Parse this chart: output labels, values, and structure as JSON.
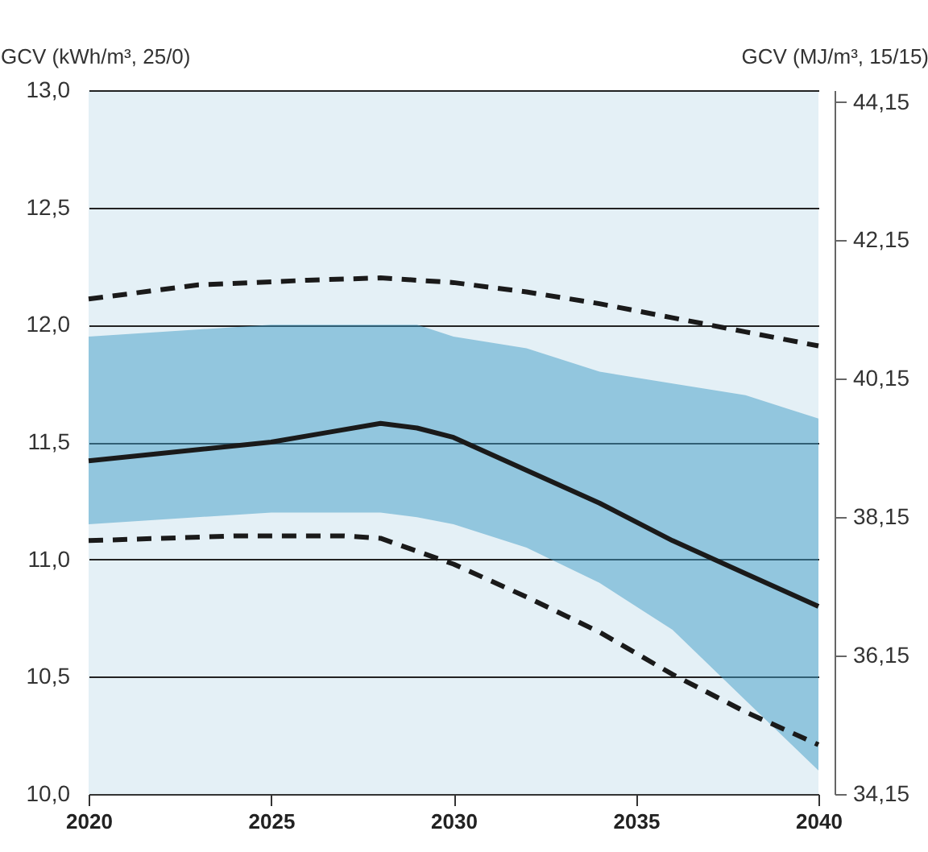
{
  "chart_data": {
    "type": "line",
    "ylabel": "GCV (kWh/m³, 25/0)",
    "y2label": "GCV (MJ/m³, 15/15)",
    "xlim": [
      2020,
      2040
    ],
    "xticks": [
      2020,
      2025,
      2030,
      2035,
      2040
    ],
    "ylim": [
      10,
      13
    ],
    "yticks": [
      {
        "value": 10,
        "label": "10,0"
      },
      {
        "value": 10.5,
        "label": "10,5"
      },
      {
        "value": 11,
        "label": "11,0"
      },
      {
        "value": 11.5,
        "label": "11,5"
      },
      {
        "value": 12,
        "label": "12,0"
      },
      {
        "value": 12.5,
        "label": "12,5"
      },
      {
        "value": 13,
        "label": "13,0"
      }
    ],
    "y2lim": [
      34.15,
      44.32
    ],
    "y2ticks": [
      {
        "value": 34.15,
        "label": "34,15"
      },
      {
        "value": 36.15,
        "label": "36,15"
      },
      {
        "value": 38.15,
        "label": "38,15"
      },
      {
        "value": 40.15,
        "label": "40,15"
      },
      {
        "value": 42.15,
        "label": "42,15"
      },
      {
        "value": 44.15,
        "label": "44,15"
      }
    ],
    "grid": "y",
    "line_style": "solid",
    "series": [
      {
        "color": "#1a1a1a",
        "x": [
          2020,
          2025,
          2026.5,
          2028,
          2029,
          2030,
          2032,
          2034,
          2036,
          2038,
          2040
        ],
        "values": [
          11.42,
          11.5,
          11.54,
          11.58,
          11.56,
          11.52,
          11.38,
          11.24,
          11.08,
          10.94,
          10.8
        ],
        "lower": [
          11.15,
          11.2,
          11.2,
          11.2,
          11.18,
          11.15,
          11.05,
          10.9,
          10.7,
          10.4,
          10.1
        ],
        "upper": [
          11.95,
          12.0,
          12.0,
          12.0,
          12.0,
          11.95,
          11.9,
          11.8,
          11.75,
          11.7,
          11.6
        ]
      },
      {
        "color": "#1a1a1a",
        "line_style": "dashed",
        "x": [
          2020,
          2023,
          2026,
          2028,
          2030,
          2032,
          2034,
          2036,
          2038,
          2040
        ],
        "values": [
          12.11,
          12.17,
          12.19,
          12.2,
          12.18,
          12.14,
          12.09,
          12.03,
          11.97,
          11.91
        ]
      },
      {
        "color": "#1a1a1a",
        "line_style": "dashed",
        "x": [
          2020,
          2024,
          2027,
          2028,
          2030,
          2032,
          2034,
          2036,
          2038,
          2040
        ],
        "values": [
          11.08,
          11.1,
          11.1,
          11.09,
          10.98,
          10.84,
          10.69,
          10.51,
          10.35,
          10.21
        ]
      }
    ]
  }
}
